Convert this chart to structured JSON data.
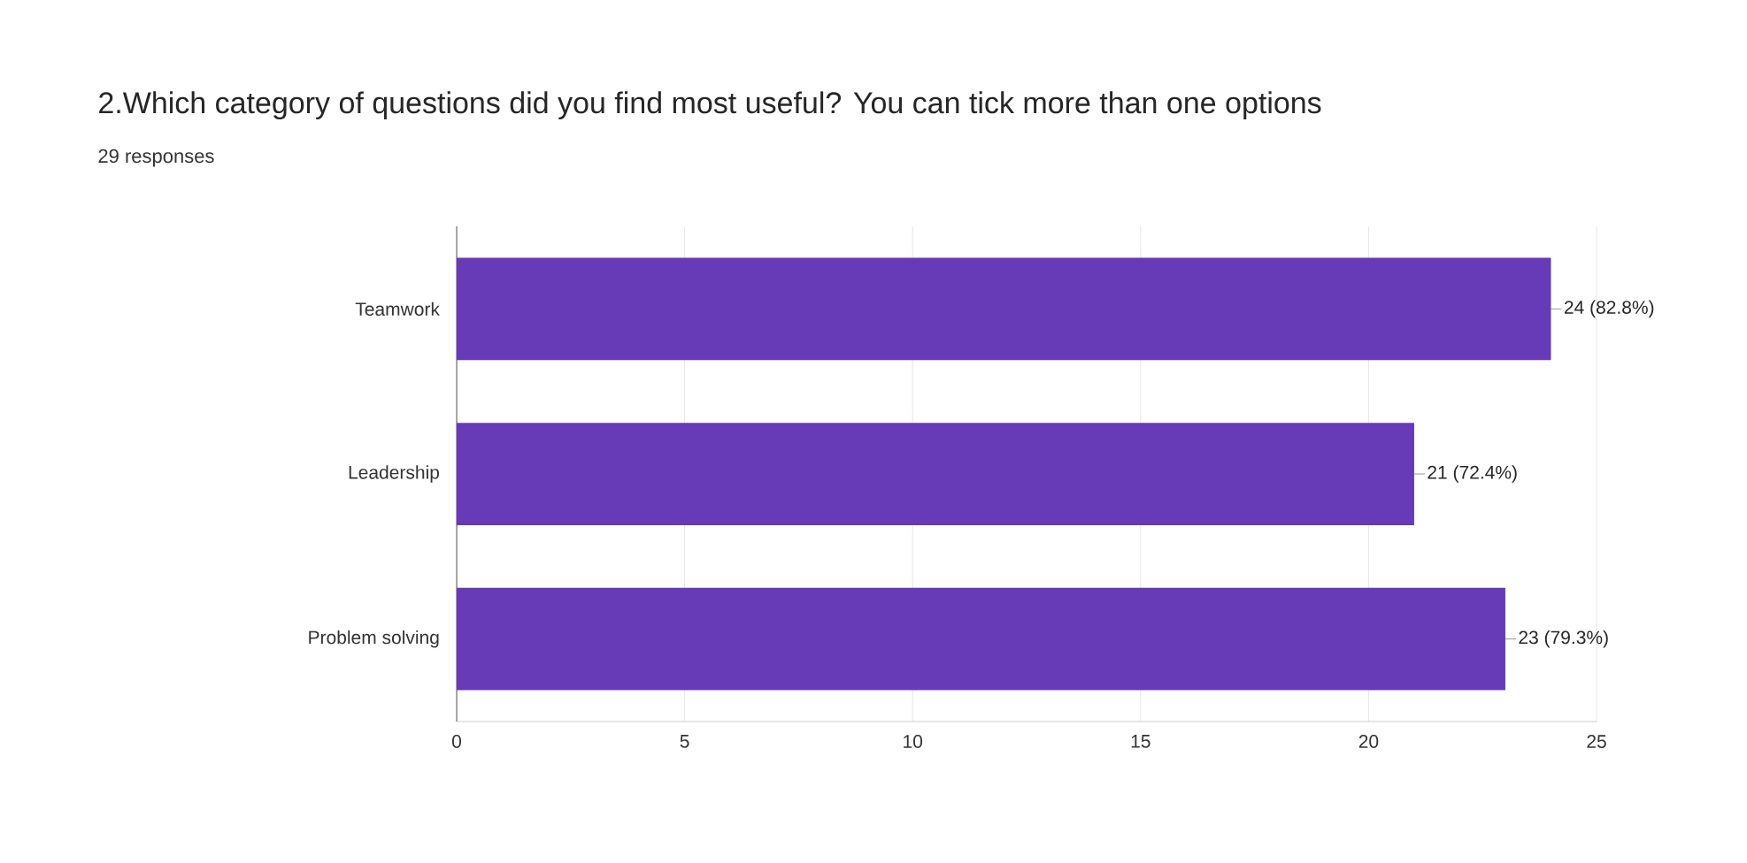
{
  "chart_data": {
    "type": "bar",
    "orientation": "horizontal",
    "title": "2.Which category of questions did you find most useful? You can tick more than one options",
    "subtitle": "29 responses",
    "categories": [
      "Teamwork",
      "Leadership",
      "Problem solving"
    ],
    "values": [
      24,
      21,
      23
    ],
    "value_labels": [
      "24 (82.8%)",
      "21 (72.4%)",
      "23 (79.3%)"
    ],
    "color": "#673ab7",
    "xlim": [
      0,
      25
    ],
    "xticks": [
      0,
      5,
      10,
      15,
      20,
      25
    ],
    "grid": "x"
  }
}
